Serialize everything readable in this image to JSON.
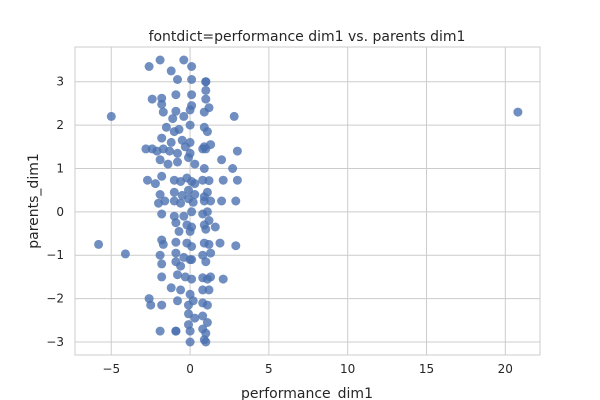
{
  "chart_data": {
    "type": "scatter",
    "title": "fontdict=performance dim1 vs. parents dim1",
    "xlabel": "performance_dim1",
    "ylabel": "parents_dim1",
    "xlim": [
      -7.3,
      22.2
    ],
    "ylim": [
      -3.3,
      3.8
    ],
    "xticks": [
      -5,
      0,
      5,
      10,
      15,
      20
    ],
    "yticks": [
      -3,
      -2,
      -1,
      0,
      1,
      2,
      3
    ],
    "grid": true,
    "marker_color": "#4c72b0",
    "points": [
      [
        -5.0,
        2.2
      ],
      [
        20.8,
        2.3
      ],
      [
        -5.8,
        -0.75
      ],
      [
        -4.1,
        -0.97
      ],
      [
        -2.6,
        3.35
      ],
      [
        -1.9,
        3.5
      ],
      [
        -1.2,
        3.25
      ],
      [
        -0.4,
        3.5
      ],
      [
        0.1,
        3.35
      ],
      [
        1.0,
        3.0
      ],
      [
        -0.8,
        3.05
      ],
      [
        0.1,
        3.05
      ],
      [
        1.0,
        3.0
      ],
      [
        -2.4,
        2.6
      ],
      [
        -1.8,
        2.62
      ],
      [
        -1.8,
        2.48
      ],
      [
        -0.9,
        2.7
      ],
      [
        0.1,
        2.7
      ],
      [
        1.0,
        2.6
      ],
      [
        1.0,
        2.8
      ],
      [
        -1.7,
        2.3
      ],
      [
        -1.1,
        2.15
      ],
      [
        -0.9,
        2.32
      ],
      [
        -0.4,
        2.2
      ],
      [
        0.0,
        2.35
      ],
      [
        0.1,
        2.45
      ],
      [
        0.9,
        2.3
      ],
      [
        1.2,
        2.4
      ],
      [
        2.8,
        2.2
      ],
      [
        -1.5,
        1.95
      ],
      [
        -1.0,
        1.85
      ],
      [
        -0.7,
        1.9
      ],
      [
        0.0,
        2.0
      ],
      [
        0.9,
        1.95
      ],
      [
        1.1,
        1.85
      ],
      [
        -1.8,
        1.7
      ],
      [
        -1.2,
        1.6
      ],
      [
        -0.5,
        1.65
      ],
      [
        0.0,
        1.6
      ],
      [
        0.9,
        1.5
      ],
      [
        1.3,
        1.55
      ],
      [
        -2.8,
        1.45
      ],
      [
        -2.4,
        1.45
      ],
      [
        -2.1,
        1.4
      ],
      [
        -1.7,
        1.45
      ],
      [
        -1.3,
        1.4
      ],
      [
        -0.8,
        1.35
      ],
      [
        -0.3,
        1.5
      ],
      [
        0.0,
        1.35
      ],
      [
        0.8,
        1.45
      ],
      [
        1.0,
        1.45
      ],
      [
        3.0,
        1.4
      ],
      [
        -1.9,
        1.2
      ],
      [
        -1.4,
        1.1
      ],
      [
        -0.8,
        1.15
      ],
      [
        -0.1,
        1.25
      ],
      [
        0.3,
        1.1
      ],
      [
        0.9,
        1.0
      ],
      [
        2.0,
        1.2
      ],
      [
        2.7,
        1.0
      ],
      [
        -2.7,
        0.73
      ],
      [
        -2.2,
        0.65
      ],
      [
        -1.8,
        0.82
      ],
      [
        -1.0,
        0.73
      ],
      [
        -0.6,
        0.7
      ],
      [
        -0.2,
        0.78
      ],
      [
        0.1,
        0.7
      ],
      [
        0.3,
        0.65
      ],
      [
        0.8,
        0.73
      ],
      [
        1.2,
        0.72
      ],
      [
        2.1,
        0.73
      ],
      [
        3.0,
        0.73
      ],
      [
        -1.9,
        0.4
      ],
      [
        -1.0,
        0.45
      ],
      [
        -0.5,
        0.38
      ],
      [
        -0.1,
        0.5
      ],
      [
        0.3,
        0.4
      ],
      [
        0.9,
        0.35
      ],
      [
        1.1,
        0.45
      ],
      [
        -2.0,
        0.2
      ],
      [
        -1.6,
        0.25
      ],
      [
        -1.0,
        0.25
      ],
      [
        -0.6,
        0.2
      ],
      [
        -0.1,
        0.3
      ],
      [
        0.2,
        0.22
      ],
      [
        0.9,
        0.25
      ],
      [
        1.3,
        0.25
      ],
      [
        2.0,
        0.25
      ],
      [
        2.9,
        0.25
      ],
      [
        -1.8,
        -0.05
      ],
      [
        -1.0,
        -0.1
      ],
      [
        -0.4,
        -0.1
      ],
      [
        0.1,
        0.0
      ],
      [
        0.8,
        -0.05
      ],
      [
        1.1,
        0.0
      ],
      [
        -0.9,
        -0.25
      ],
      [
        -0.2,
        -0.3
      ],
      [
        0.1,
        -0.35
      ],
      [
        0.9,
        -0.3
      ],
      [
        1.2,
        -0.2
      ],
      [
        -0.7,
        -0.45
      ],
      [
        0.0,
        -0.45
      ],
      [
        1.0,
        -0.4
      ],
      [
        1.6,
        -0.35
      ],
      [
        -1.8,
        -0.65
      ],
      [
        -1.7,
        -0.75
      ],
      [
        -0.9,
        -0.7
      ],
      [
        -0.2,
        -0.72
      ],
      [
        0.1,
        -0.8
      ],
      [
        0.9,
        -0.72
      ],
      [
        1.2,
        -0.75
      ],
      [
        1.9,
        -0.72
      ],
      [
        2.9,
        -0.78
      ],
      [
        -1.9,
        -1.0
      ],
      [
        -0.9,
        -0.95
      ],
      [
        -0.4,
        -1.05
      ],
      [
        0.1,
        -1.1
      ],
      [
        0.8,
        -1.0
      ],
      [
        1.3,
        -0.95
      ],
      [
        -1.8,
        -1.2
      ],
      [
        -0.9,
        -1.15
      ],
      [
        -0.6,
        -1.25
      ],
      [
        0.0,
        -1.1
      ],
      [
        1.0,
        -1.15
      ],
      [
        -1.8,
        -1.5
      ],
      [
        -0.8,
        -1.45
      ],
      [
        -0.3,
        -1.5
      ],
      [
        0.1,
        -1.55
      ],
      [
        0.8,
        -1.52
      ],
      [
        1.1,
        -1.55
      ],
      [
        1.3,
        -1.5
      ],
      [
        2.1,
        -1.55
      ],
      [
        -1.2,
        -1.75
      ],
      [
        -0.6,
        -1.8
      ],
      [
        0.0,
        -1.9
      ],
      [
        0.8,
        -1.8
      ],
      [
        1.2,
        -1.8
      ],
      [
        -2.6,
        -2.0
      ],
      [
        -2.5,
        -2.15
      ],
      [
        -1.8,
        -2.15
      ],
      [
        -0.8,
        -2.05
      ],
      [
        -0.1,
        -2.15
      ],
      [
        0.2,
        -2.05
      ],
      [
        0.8,
        -2.1
      ],
      [
        1.1,
        -2.15
      ],
      [
        -0.1,
        -2.35
      ],
      [
        0.3,
        -2.45
      ],
      [
        0.8,
        -2.4
      ],
      [
        1.1,
        -2.55
      ],
      [
        -0.1,
        -2.6
      ],
      [
        -1.9,
        -2.75
      ],
      [
        -0.9,
        -2.75
      ],
      [
        0.0,
        -2.75
      ],
      [
        0.8,
        -2.7
      ],
      [
        1.0,
        -2.8
      ],
      [
        -0.9,
        -2.75
      ],
      [
        0.0,
        -3.0
      ],
      [
        0.9,
        -2.95
      ],
      [
        1.0,
        -3.0
      ]
    ]
  }
}
